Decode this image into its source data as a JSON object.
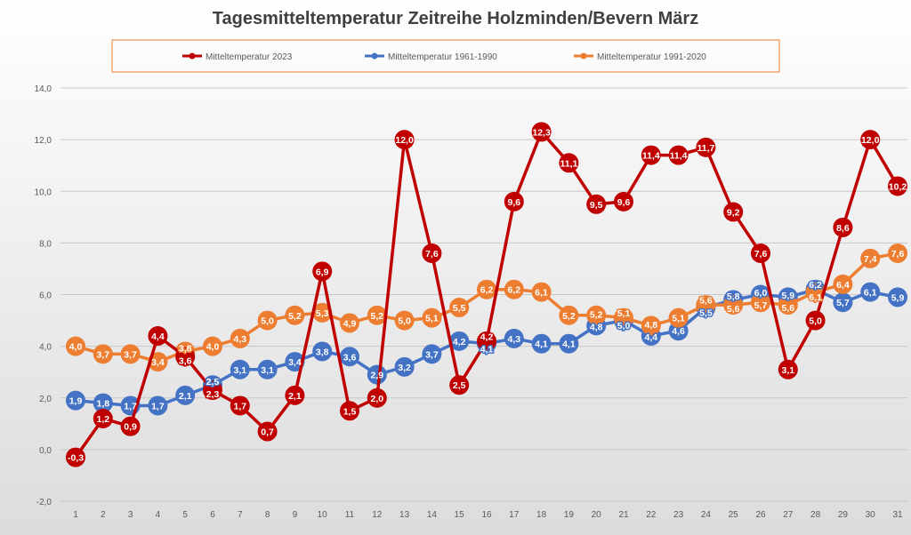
{
  "chart_data": {
    "type": "line",
    "title": "Tagesmitteltemperatur Zeitreihe Holzminden/Bevern März",
    "xlabel": "",
    "ylabel": "",
    "ylim": [
      -2,
      14
    ],
    "yticks": [
      "-2,0",
      "0,0",
      "2,0",
      "4,0",
      "6,0",
      "8,0",
      "10,0",
      "12,0",
      "14,0"
    ],
    "categories": [
      "1",
      "2",
      "3",
      "4",
      "5",
      "6",
      "7",
      "8",
      "9",
      "10",
      "11",
      "12",
      "13",
      "14",
      "15",
      "16",
      "17",
      "18",
      "19",
      "20",
      "21",
      "22",
      "23",
      "24",
      "25",
      "26",
      "27",
      "28",
      "29",
      "30",
      "31"
    ],
    "legend_position": "top",
    "series": [
      {
        "name": "Mitteltemperatur 2023",
        "color": "#c00000",
        "values": [
          -0.3,
          1.2,
          0.9,
          4.4,
          3.6,
          2.3,
          1.7,
          0.7,
          2.1,
          6.9,
          1.5,
          2.0,
          12.0,
          7.6,
          2.5,
          4.2,
          9.6,
          12.3,
          11.1,
          9.5,
          9.6,
          11.4,
          11.4,
          11.7,
          9.2,
          7.6,
          3.1,
          5.0,
          8.6,
          12.0,
          10.2
        ]
      },
      {
        "name": "Mitteltemperatur 1961-1990",
        "color": "#4472c4",
        "values": [
          1.9,
          1.8,
          1.7,
          1.7,
          2.1,
          2.5,
          3.1,
          3.1,
          3.4,
          3.8,
          3.6,
          2.9,
          3.2,
          3.7,
          4.2,
          4.1,
          4.3,
          4.1,
          4.1,
          4.8,
          5.0,
          4.4,
          4.6,
          5.5,
          5.8,
          6.0,
          5.9,
          6.2,
          5.7,
          6.1,
          5.9
        ]
      },
      {
        "name": "Mitteltemperatur 1991-2020",
        "color": "#ed7d31",
        "values": [
          4.0,
          3.7,
          3.7,
          3.4,
          3.8,
          4.0,
          4.3,
          5.0,
          5.2,
          5.3,
          4.9,
          5.2,
          5.0,
          5.1,
          5.5,
          6.2,
          6.2,
          6.1,
          5.2,
          5.2,
          5.1,
          4.8,
          5.1,
          5.6,
          5.6,
          5.7,
          5.6,
          6.1,
          6.4,
          7.4,
          7.6
        ]
      }
    ]
  }
}
